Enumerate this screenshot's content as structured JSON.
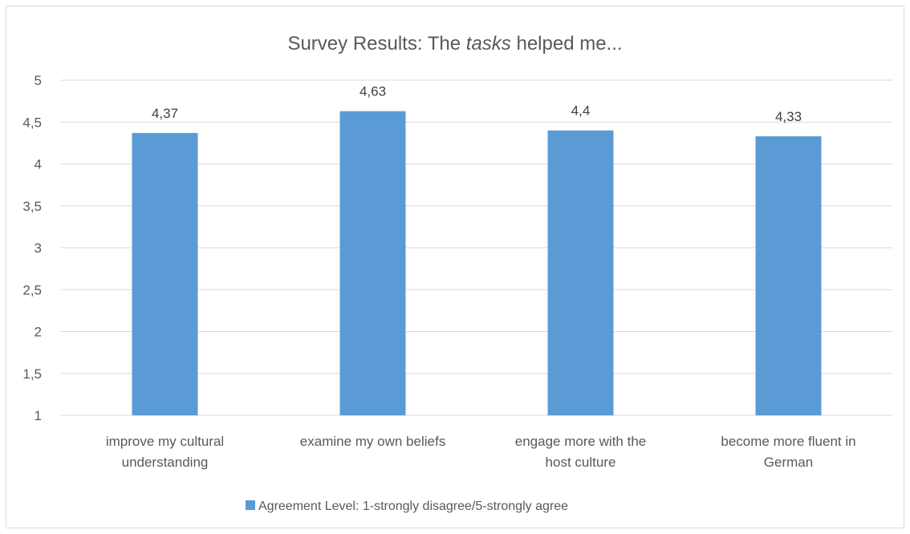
{
  "chart_data": {
    "type": "bar",
    "title_prefix": "Survey Results: The ",
    "title_emphasis": "tasks",
    "title_suffix": " helped me...",
    "categories": [
      [
        "improve my cultural",
        "understanding"
      ],
      [
        "examine my own beliefs"
      ],
      [
        "engage more with the",
        "host culture"
      ],
      [
        "become more fluent in",
        "German"
      ]
    ],
    "series": [
      {
        "name": "Agreement Level: 1-strongly disagree/5-strongly agree",
        "values": [
          4.37,
          4.63,
          4.4,
          4.33
        ],
        "value_labels": [
          "4,37",
          "4,63",
          "4,4",
          "4,33"
        ],
        "color": "#5b9bd5"
      }
    ],
    "ylim": [
      1,
      5
    ],
    "yticks": [
      {
        "value": 1,
        "label": "1"
      },
      {
        "value": 1.5,
        "label": "1,5"
      },
      {
        "value": 2,
        "label": "2"
      },
      {
        "value": 2.5,
        "label": "2,5"
      },
      {
        "value": 3,
        "label": "3"
      },
      {
        "value": 3.5,
        "label": "3,5"
      },
      {
        "value": 4,
        "label": "4"
      },
      {
        "value": 4.5,
        "label": "4,5"
      },
      {
        "value": 5,
        "label": "5"
      }
    ],
    "grid": true,
    "legend_position": "bottom",
    "gridline_color": "#d9d9d9"
  }
}
